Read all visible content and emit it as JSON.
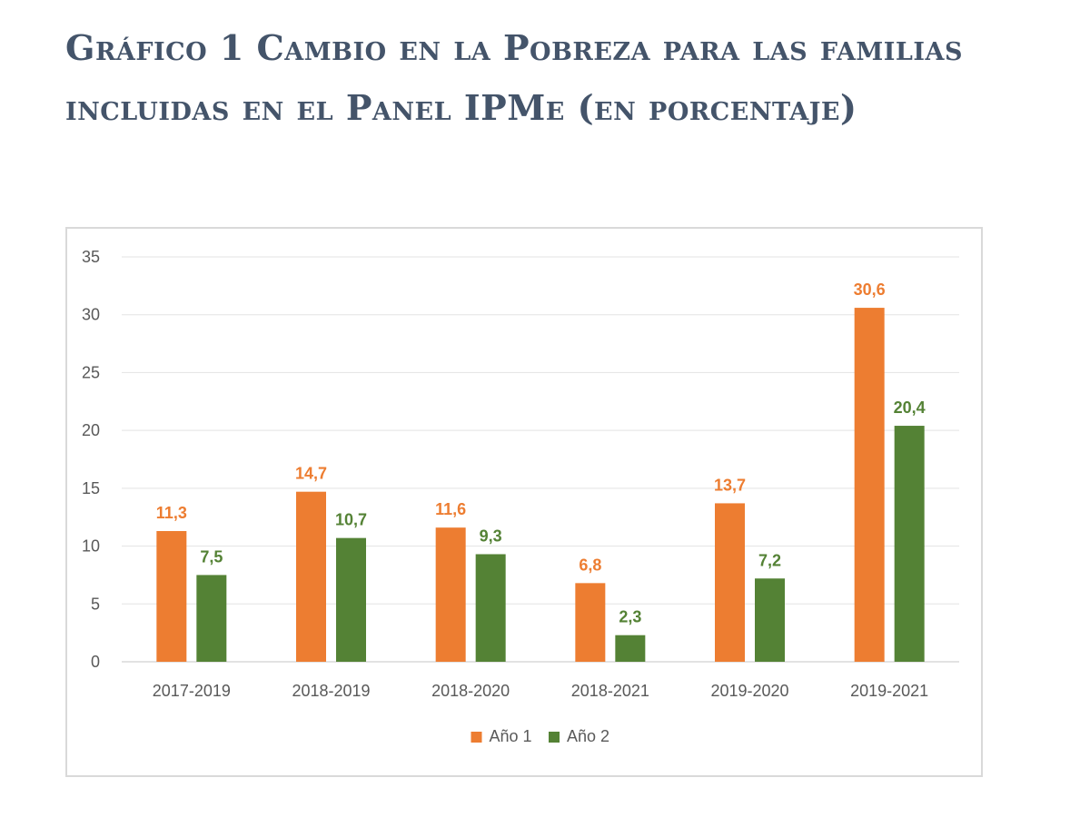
{
  "title": "Gráfico 1 Cambio en la Pobreza para las familias incluidas en el Panel IPMe (en porcentaje)",
  "colors": {
    "series1": "#ed7d31",
    "series2": "#548235",
    "grid": "#e3e3e3",
    "axis": "#d9d9d9",
    "tick": "#595959"
  },
  "chart_data": {
    "type": "bar",
    "title": "Gráfico 1 Cambio en la Pobreza para las familias incluidas en el Panel IPMe (en porcentaje)",
    "xlabel": "",
    "ylabel": "",
    "ylim": [
      0,
      35
    ],
    "yticks": [
      0,
      5,
      10,
      15,
      20,
      25,
      30,
      35
    ],
    "grid": true,
    "legend": "bottom",
    "categories": [
      "2017-2019",
      "2018-2019",
      "2018-2020",
      "2018-2021",
      "2019-2020",
      "2019-2021"
    ],
    "series": [
      {
        "name": "Año 1",
        "values": [
          11.3,
          14.7,
          11.6,
          6.8,
          13.7,
          30.6
        ],
        "labels": [
          "11,3",
          "14,7",
          "11,6",
          "6,8",
          "13,7",
          "30,6"
        ]
      },
      {
        "name": "Año 2",
        "values": [
          7.5,
          10.7,
          9.3,
          2.3,
          7.2,
          20.4
        ],
        "labels": [
          "7,5",
          "10,7",
          "9,3",
          "2,3",
          "7,2",
          "20,4"
        ]
      }
    ]
  }
}
